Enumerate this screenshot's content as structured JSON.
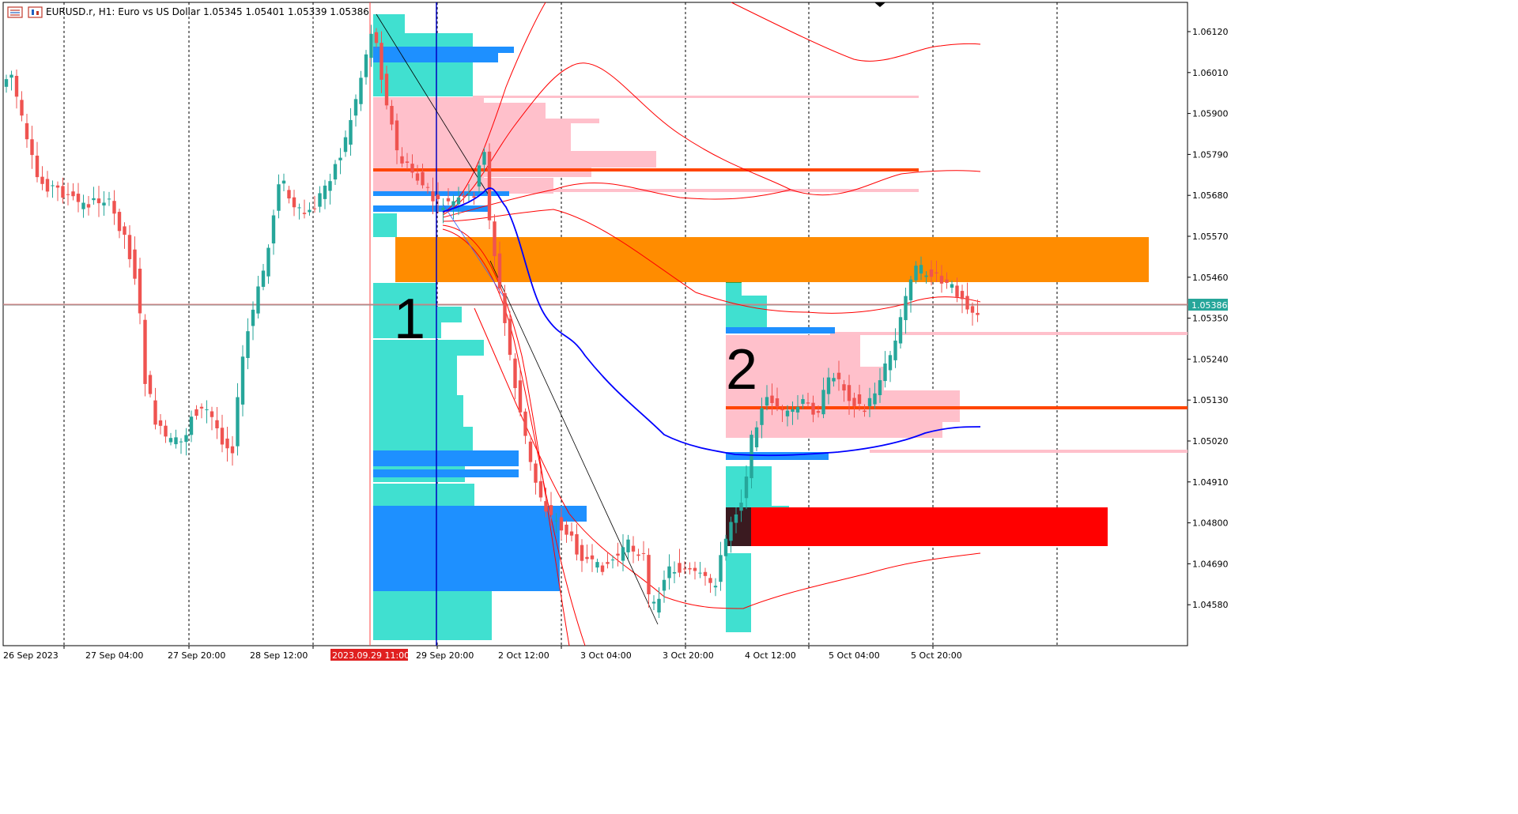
{
  "header": {
    "title": "EURUSD.r, H1:  Euro vs US Dollar  1.05345 1.05401 1.05339 1.05386",
    "menu_icon": "menu-icon",
    "chart_icon": "chart-type-icon"
  },
  "price_axis": {
    "labels": [
      "1.06120",
      "1.06010",
      "1.05900",
      "1.05790",
      "1.05680",
      "1.05570",
      "1.05460",
      "1.05350",
      "1.05240",
      "1.05130",
      "1.05020",
      "1.04910",
      "1.04800",
      "1.04690",
      "1.04580"
    ],
    "current_price": "1.05386"
  },
  "time_axis": {
    "labels": [
      "26 Sep 2023",
      "27 Sep 04:00",
      "27 Sep 20:00",
      "28 Sep 12:00",
      "2023.09.29 11:00",
      "29 Sep 20:00",
      "2 Oct 12:00",
      "3 Oct 04:00",
      "3 Oct 20:00",
      "4 Oct 12:00",
      "5 Oct 04:00",
      "5 Oct 20:00"
    ],
    "highlighted_label": "2023.09.29 11:00"
  },
  "annotations": {
    "label1": "1",
    "label2": "2"
  },
  "colors": {
    "bull": "#26a69a",
    "bear": "#ef5350",
    "profile_aqua": "#40e0d0",
    "profile_blue": "#1e90ff",
    "value_area_pink": "#ffc0cb",
    "poc_orange": "#ff4500",
    "zone_orange": "#ff8c00",
    "zone_red": "#ff0000",
    "ma_blue": "#0000ff",
    "band_red": "#ff0000",
    "current_price_bg": "#26a69a"
  }
}
